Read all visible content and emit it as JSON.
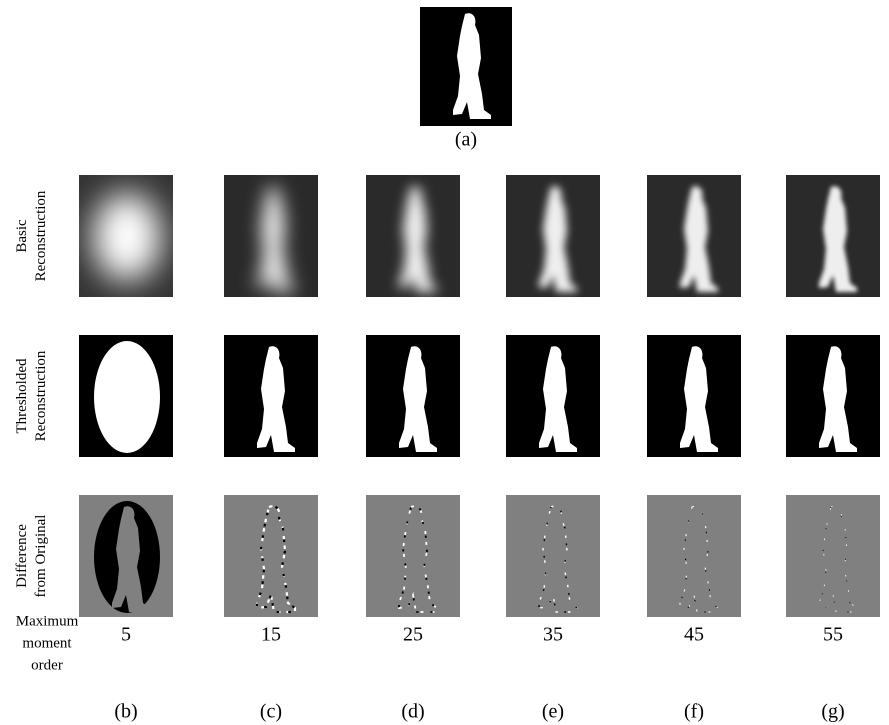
{
  "panel_a": {
    "label": "(a)"
  },
  "rows": [
    {
      "label": [
        "Basic",
        "Reconstruction"
      ]
    },
    {
      "label": [
        "Thresholded",
        "Reconstruction"
      ]
    },
    {
      "label": [
        "Difference",
        "from Original"
      ]
    }
  ],
  "order_label": [
    "Maximum",
    "moment",
    "order"
  ],
  "columns": [
    {
      "order": 5,
      "label": "(b)"
    },
    {
      "order": 15,
      "label": "(c)"
    },
    {
      "order": 25,
      "label": "(d)"
    },
    {
      "order": 35,
      "label": "(e)"
    },
    {
      "order": 45,
      "label": "(f)"
    },
    {
      "order": 55,
      "label": "(g)"
    }
  ]
}
